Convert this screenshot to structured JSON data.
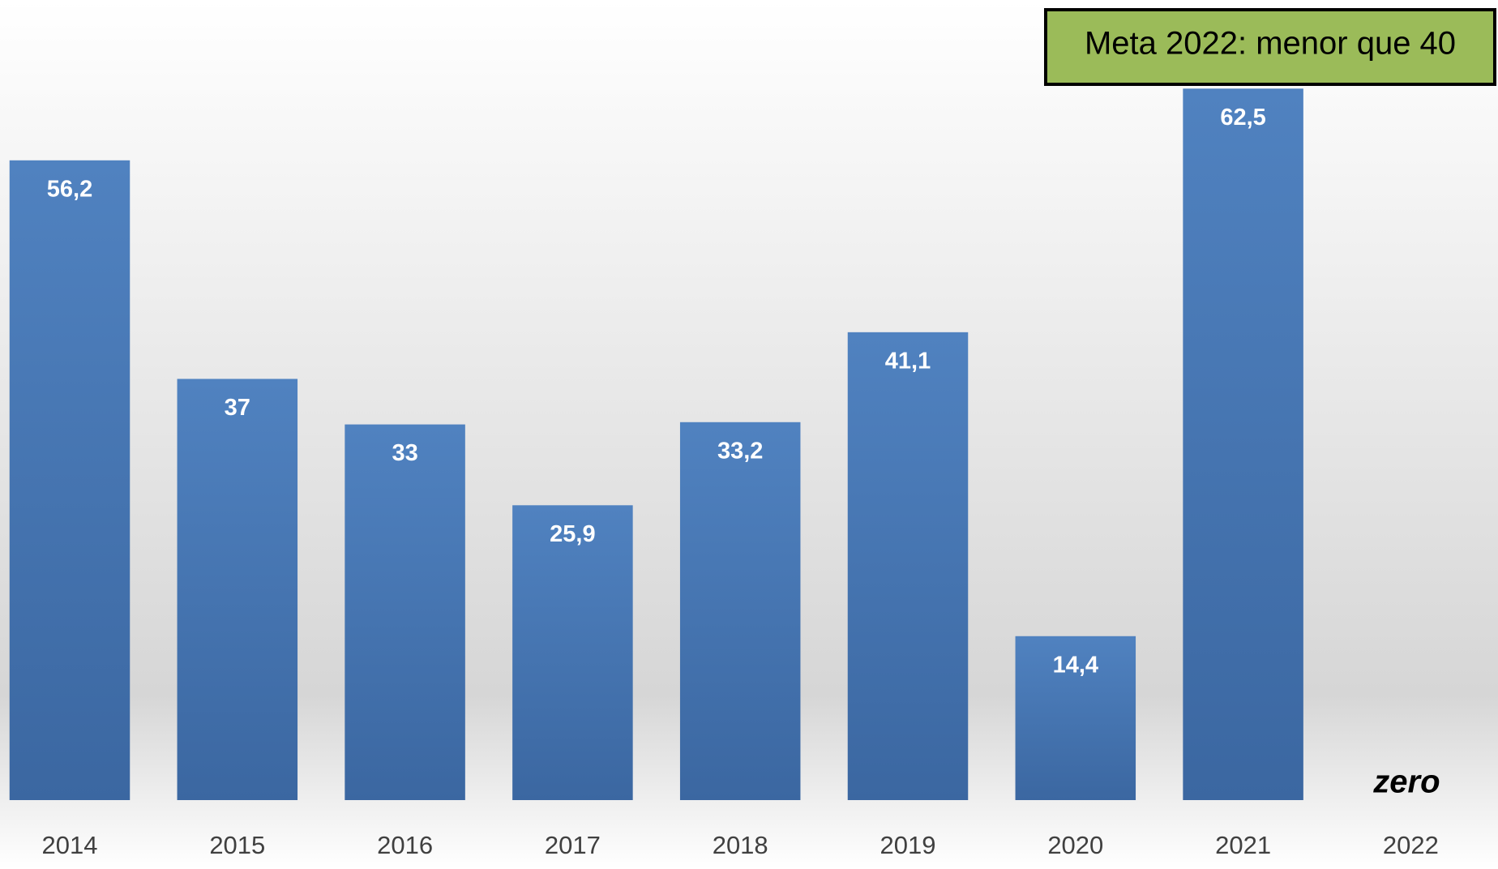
{
  "chart_data": {
    "type": "bar",
    "annotation": "Meta 2022: menor que 40",
    "categories": [
      "2014",
      "2015",
      "2016",
      "2017",
      "2018",
      "2019",
      "2020",
      "2021",
      "2022"
    ],
    "values": [
      56.2,
      37,
      33,
      25.9,
      33.2,
      41.1,
      14.4,
      62.5,
      0
    ],
    "value_labels": [
      "56,2",
      "37",
      "33",
      "25,9",
      "33,2",
      "41,1",
      "14,4",
      "62,5",
      "zero"
    ],
    "color": "#4a7dbb",
    "annotation_color": "#9bbb59",
    "ylim": [
      0,
      70
    ],
    "grid": false
  }
}
